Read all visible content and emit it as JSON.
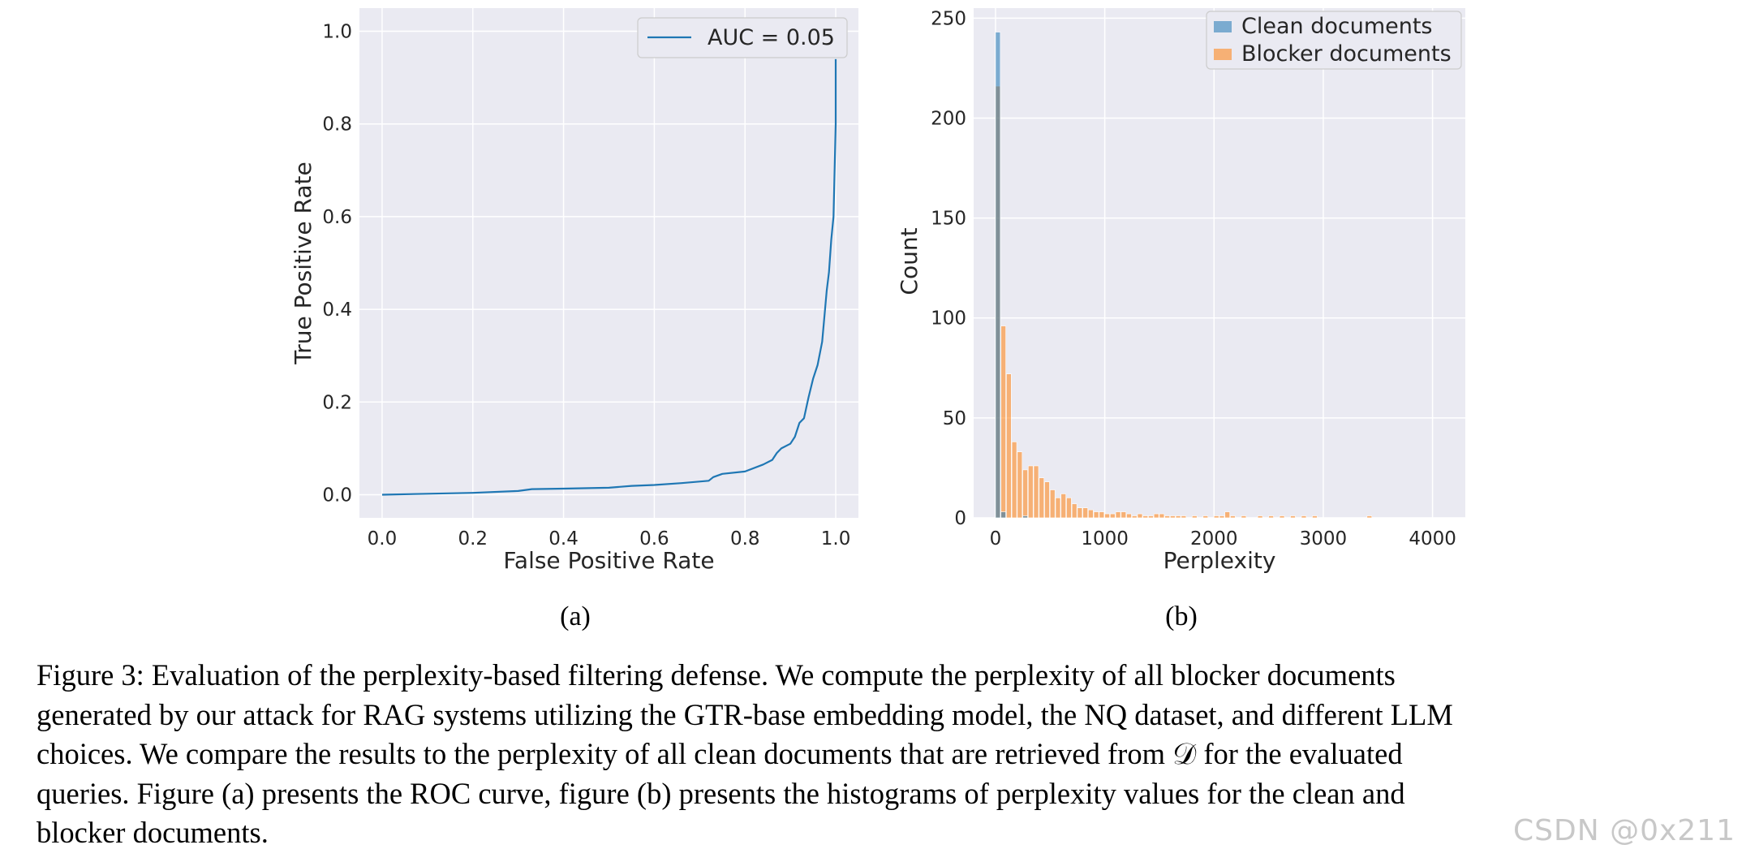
{
  "chart_data": [
    {
      "type": "line",
      "panel": "(a)",
      "xlabel": "False Positive Rate",
      "ylabel": "True Positive Rate",
      "xlim": [
        -0.05,
        1.05
      ],
      "ylim": [
        -0.05,
        1.05
      ],
      "xticks": [
        "0.0",
        "0.2",
        "0.4",
        "0.6",
        "0.8",
        "1.0"
      ],
      "yticks": [
        "0.0",
        "0.2",
        "0.4",
        "0.6",
        "0.8",
        "1.0"
      ],
      "grid": true,
      "legend": {
        "position": "top-right",
        "entries": [
          "AUC = 0.05"
        ]
      },
      "series": [
        {
          "name": "AUC = 0.05",
          "color": "#1f77b4",
          "x": [
            0.0,
            0.1,
            0.2,
            0.3,
            0.33,
            0.4,
            0.5,
            0.55,
            0.6,
            0.66,
            0.72,
            0.73,
            0.75,
            0.8,
            0.84,
            0.86,
            0.87,
            0.88,
            0.9,
            0.91,
            0.92,
            0.93,
            0.94,
            0.95,
            0.96,
            0.97,
            0.98,
            0.985,
            0.99,
            0.995,
            1.0,
            1.0
          ],
          "y": [
            0.0,
            0.002,
            0.004,
            0.008,
            0.012,
            0.013,
            0.015,
            0.019,
            0.021,
            0.025,
            0.03,
            0.038,
            0.045,
            0.05,
            0.065,
            0.075,
            0.09,
            0.1,
            0.11,
            0.125,
            0.155,
            0.165,
            0.21,
            0.25,
            0.28,
            0.33,
            0.44,
            0.48,
            0.55,
            0.6,
            0.8,
            0.94
          ]
        }
      ]
    },
    {
      "type": "bar",
      "subtype": "histogram",
      "panel": "(b)",
      "xlabel": "Perplexity",
      "ylabel": "Count",
      "xlim": [
        -200,
        4300
      ],
      "ylim": [
        0,
        255
      ],
      "xticks": [
        "0",
        "1000",
        "2000",
        "3000",
        "4000"
      ],
      "yticks": [
        "0",
        "50",
        "100",
        "150",
        "200",
        "250"
      ],
      "grid": true,
      "legend": {
        "position": "top-right",
        "entries": [
          "Clean documents",
          "Blocker documents"
        ]
      },
      "series": [
        {
          "name": "Clean documents",
          "color": "#1f77b4",
          "bin_width": 50,
          "bin_starts": [
            0,
            50,
            250
          ],
          "values": [
            243,
            3,
            1
          ]
        },
        {
          "name": "Blocker documents",
          "color": "#ff7f0e",
          "bin_width": 50,
          "bin_starts": [
            0,
            50,
            100,
            150,
            200,
            250,
            300,
            350,
            400,
            450,
            500,
            550,
            600,
            650,
            700,
            750,
            800,
            850,
            900,
            950,
            1000,
            1050,
            1100,
            1150,
            1200,
            1250,
            1300,
            1350,
            1400,
            1450,
            1500,
            1550,
            1600,
            1650,
            1700,
            1800,
            1900,
            2000,
            2050,
            2100,
            2150,
            2250,
            2400,
            2500,
            2600,
            2700,
            2800,
            2900,
            3400
          ],
          "values": [
            216,
            96,
            72,
            38,
            33,
            24,
            26,
            26,
            20,
            18,
            14,
            10,
            12,
            10,
            7,
            5,
            5,
            4,
            3,
            3,
            2,
            2,
            3,
            3,
            2,
            1,
            2,
            1,
            1,
            2,
            2,
            1,
            1,
            1,
            1,
            1,
            1,
            1,
            1,
            3,
            1,
            1,
            1,
            1,
            1,
            1,
            1,
            1,
            1
          ]
        }
      ]
    }
  ],
  "figure": {
    "sublabel_a": "(a)",
    "sublabel_b": "(b)",
    "caption_lines": [
      "Figure 3: Evaluation of the perplexity-based filtering defense. We compute the perplexity of all blocker documents",
      "generated by our attack for RAG systems utilizing the GTR-base embedding model, the NQ dataset, and different LLM",
      "choices. We compare the results to the perplexity of all clean documents that are retrieved from 𝒟 for the evaluated",
      "queries. Figure (a) presents the ROC curve, figure (b) presents the histograms of perplexity values for the clean and",
      "blocker documents."
    ]
  },
  "watermark": "CSDN @0x211"
}
